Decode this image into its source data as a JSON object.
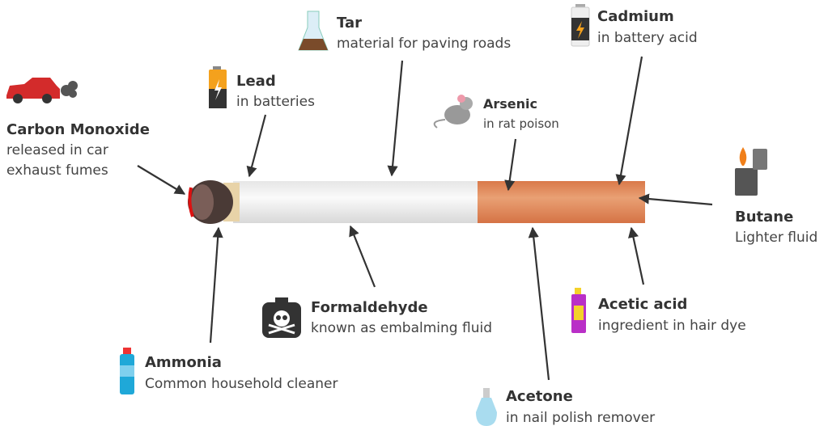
{
  "items": [
    {
      "name": "Carbon Monoxide",
      "description": [
        "released in car",
        "exhaust fumes"
      ]
    },
    {
      "name": "Lead",
      "description": "in batteries"
    },
    {
      "name": "Tar",
      "description": "material for paving roads"
    },
    {
      "name": "Arsenic",
      "description": "in rat poison"
    },
    {
      "name": "Cadmium",
      "description": "in battery acid"
    },
    {
      "name": "Butane",
      "description": "Lighter fluid"
    },
    {
      "name": "Acetic acid",
      "description": "ingredient in hair dye"
    },
    {
      "name": "Acetone",
      "description": "in nail polish remover"
    },
    {
      "name": "Formaldehyde",
      "description": "known as embalming fluid"
    },
    {
      "name": "Ammonia",
      "description": "Common household cleaner"
    }
  ]
}
